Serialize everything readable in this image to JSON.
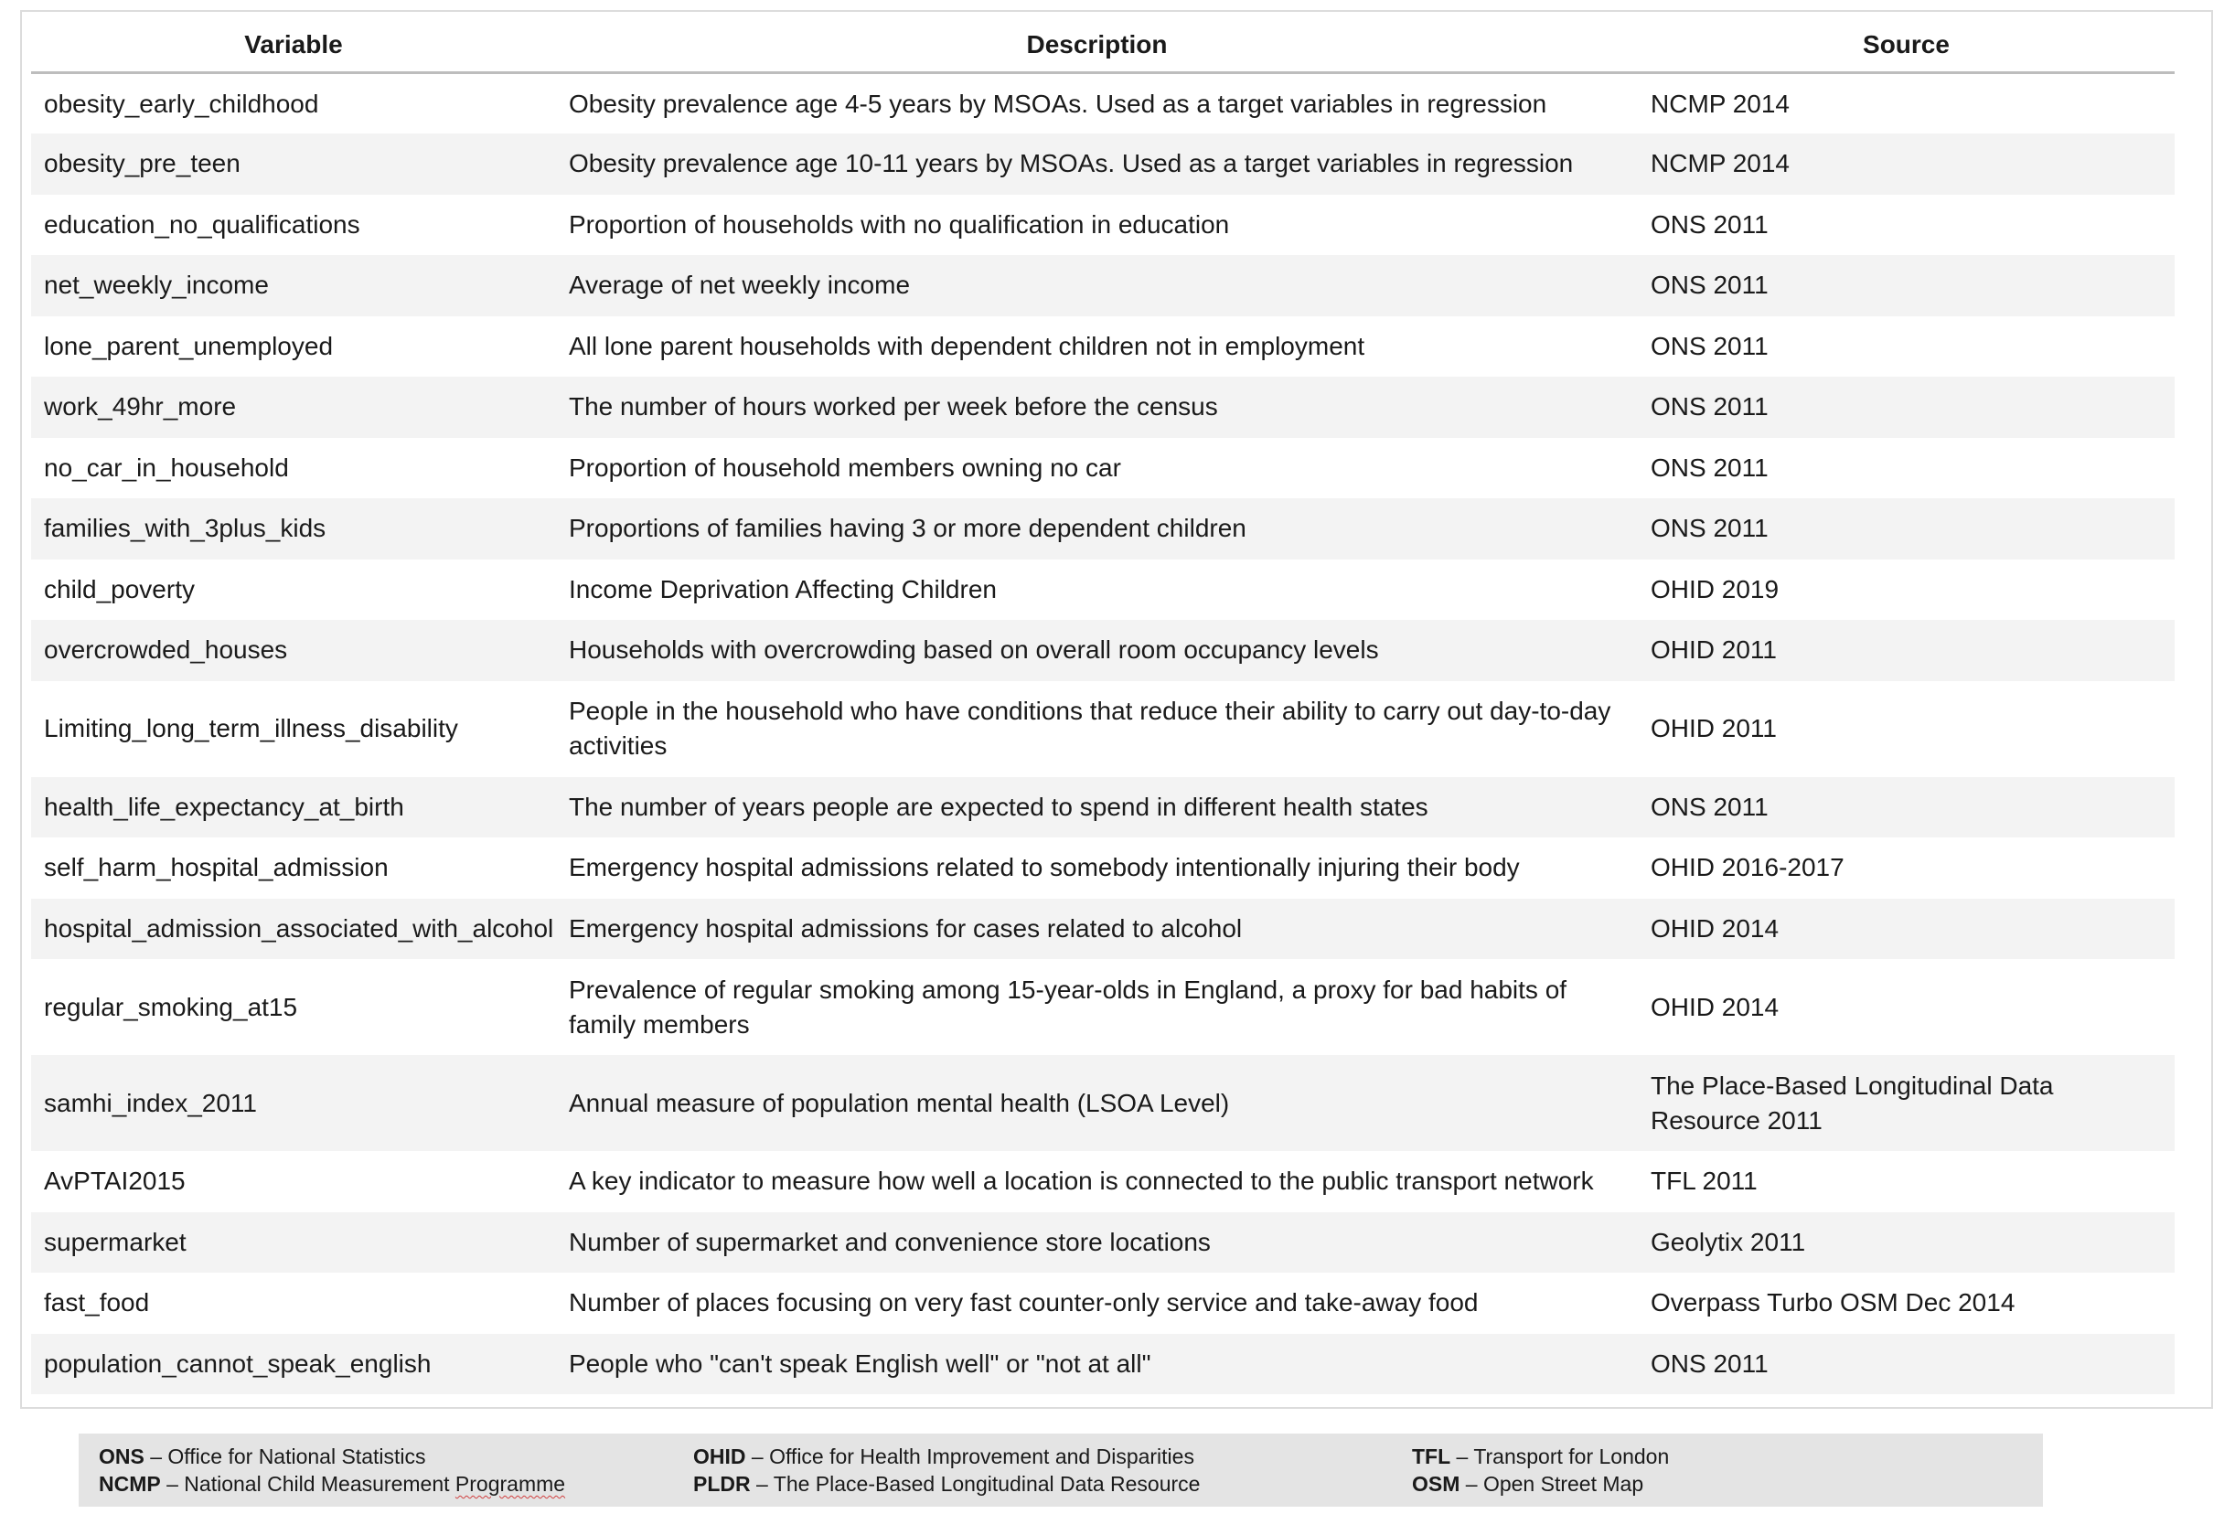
{
  "table": {
    "headers": [
      "Variable",
      "Description",
      "Source"
    ],
    "rows": [
      [
        "obesity_early_childhood",
        "Obesity prevalence age 4-5 years by MSOAs. Used as a target variables in regression",
        "NCMP 2014"
      ],
      [
        "obesity_pre_teen",
        "Obesity prevalence age 10-11 years by MSOAs. Used as a target variables in regression",
        "NCMP 2014"
      ],
      [
        "education_no_qualifications",
        "Proportion of households with no qualification in education",
        "ONS 2011"
      ],
      [
        "net_weekly_income",
        "Average of net weekly income",
        "ONS 2011"
      ],
      [
        "lone_parent_unemployed",
        "All lone parent households with dependent children not in employment",
        "ONS 2011"
      ],
      [
        "work_49hr_more",
        "The number of hours worked per week before the census",
        "ONS 2011"
      ],
      [
        "no_car_in_household",
        "Proportion of household members owning no car",
        "ONS 2011"
      ],
      [
        "families_with_3plus_kids",
        "Proportions of families having 3 or more dependent children",
        "ONS 2011"
      ],
      [
        "child_poverty",
        "Income Deprivation Affecting Children",
        "OHID 2019"
      ],
      [
        "overcrowded_houses",
        "Households with overcrowding based on overall room occupancy levels",
        "OHID 2011"
      ],
      [
        "Limiting_long_term_illness_disability",
        "People in the household who have conditions that reduce their ability to carry out day-to-day activities",
        "OHID 2011"
      ],
      [
        "health_life_expectancy_at_birth",
        "The number of years people are expected to spend in different health states",
        "ONS 2011"
      ],
      [
        "self_harm_hospital_admission",
        "Emergency hospital admissions related to somebody intentionally injuring their body",
        "OHID 2016-2017"
      ],
      [
        "hospital_admission_associated_with_alcohol",
        "Emergency hospital admissions for cases related to alcohol",
        "OHID 2014"
      ],
      [
        "regular_smoking_at15",
        "Prevalence of regular smoking among 15-year-olds in England, a proxy for bad habits of family members",
        "OHID 2014"
      ],
      [
        "samhi_index_2011",
        "Annual measure of population mental health (LSOA Level)",
        "The Place-Based Longitudinal Data Resource 2011"
      ],
      [
        "AvPTAI2015",
        "A key indicator to measure how well a location is connected to the public transport network",
        "TFL 2011"
      ],
      [
        "supermarket",
        "Number of supermarket and convenience store locations",
        "Geolytix 2011"
      ],
      [
        "fast_food",
        "Number of places focusing on very fast counter-only service and take-away food",
        "Overpass Turbo OSM Dec 2014"
      ],
      [
        "population_cannot_speak_english",
        "People who \"can't speak English well\" or \"not at all\"",
        "ONS 2011"
      ]
    ]
  },
  "legend": {
    "ons": {
      "abbr": "ONS",
      "text": "– Office for National Statistics"
    },
    "ncmp": {
      "abbr": "NCMP",
      "text": "– National Child Measurement",
      "text_tail": "Programme"
    },
    "ohid": {
      "abbr": "OHID",
      "text": "– Office for Health Improvement and Disparities"
    },
    "pldr": {
      "abbr": "PLDR",
      "text": "– The Place-Based Longitudinal Data Resource"
    },
    "tfl": {
      "abbr": "TFL",
      "text": "– Transport for London"
    },
    "osm": {
      "abbr": "OSM",
      "text": "– Open Street Map"
    }
  }
}
